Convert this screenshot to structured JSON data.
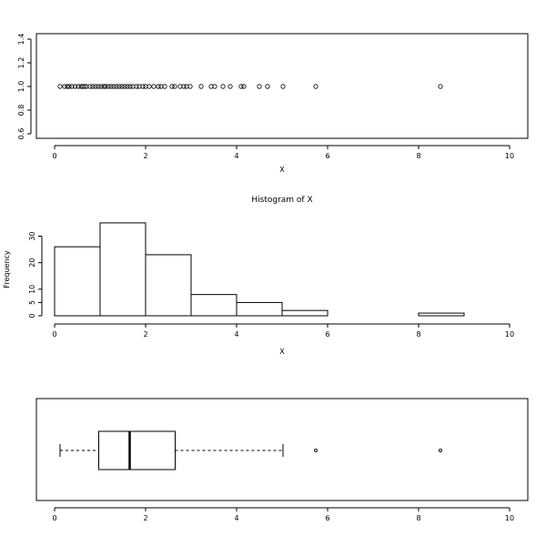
{
  "chart_data": [
    {
      "type": "scatter",
      "xlabel": "X",
      "ylabel": "",
      "xlim": [
        0,
        10
      ],
      "ylim": [
        0.6,
        1.4
      ],
      "x_ticks": [
        0,
        2,
        4,
        6,
        8,
        10
      ],
      "y_ticks": [
        0.6,
        0.8,
        1.0,
        1.2,
        1.4
      ],
      "y_tick_labels": [
        "0.6",
        "0.8",
        "1.0",
        "1.2",
        "1.4"
      ],
      "marker": "open-circle",
      "points": [
        {
          "x": 0.12,
          "y": 1.0
        },
        {
          "x": 0.22,
          "y": 1.0
        },
        {
          "x": 0.28,
          "y": 1.0
        },
        {
          "x": 0.32,
          "y": 1.0
        },
        {
          "x": 0.38,
          "y": 1.0
        },
        {
          "x": 0.45,
          "y": 1.0
        },
        {
          "x": 0.52,
          "y": 1.0
        },
        {
          "x": 0.58,
          "y": 1.0
        },
        {
          "x": 0.62,
          "y": 1.0
        },
        {
          "x": 0.66,
          "y": 1.0
        },
        {
          "x": 0.7,
          "y": 1.0
        },
        {
          "x": 0.78,
          "y": 1.0
        },
        {
          "x": 0.84,
          "y": 1.0
        },
        {
          "x": 0.9,
          "y": 1.0
        },
        {
          "x": 0.96,
          "y": 1.0
        },
        {
          "x": 1.02,
          "y": 1.0
        },
        {
          "x": 1.08,
          "y": 1.0
        },
        {
          "x": 1.12,
          "y": 1.0
        },
        {
          "x": 1.18,
          "y": 1.0
        },
        {
          "x": 1.24,
          "y": 1.0
        },
        {
          "x": 1.3,
          "y": 1.0
        },
        {
          "x": 1.36,
          "y": 1.0
        },
        {
          "x": 1.42,
          "y": 1.0
        },
        {
          "x": 1.48,
          "y": 1.0
        },
        {
          "x": 1.54,
          "y": 1.0
        },
        {
          "x": 1.6,
          "y": 1.0
        },
        {
          "x": 1.66,
          "y": 1.0
        },
        {
          "x": 1.72,
          "y": 1.0
        },
        {
          "x": 1.8,
          "y": 1.0
        },
        {
          "x": 1.86,
          "y": 1.0
        },
        {
          "x": 1.94,
          "y": 1.0
        },
        {
          "x": 2.0,
          "y": 1.0
        },
        {
          "x": 2.08,
          "y": 1.0
        },
        {
          "x": 2.18,
          "y": 1.0
        },
        {
          "x": 2.28,
          "y": 1.0
        },
        {
          "x": 2.34,
          "y": 1.0
        },
        {
          "x": 2.42,
          "y": 1.0
        },
        {
          "x": 2.58,
          "y": 1.0
        },
        {
          "x": 2.64,
          "y": 1.0
        },
        {
          "x": 2.76,
          "y": 1.0
        },
        {
          "x": 2.84,
          "y": 1.0
        },
        {
          "x": 2.9,
          "y": 1.0
        },
        {
          "x": 2.98,
          "y": 1.0
        },
        {
          "x": 3.22,
          "y": 1.0
        },
        {
          "x": 3.44,
          "y": 1.0
        },
        {
          "x": 3.52,
          "y": 1.0
        },
        {
          "x": 3.7,
          "y": 1.0
        },
        {
          "x": 3.86,
          "y": 1.0
        },
        {
          "x": 4.1,
          "y": 1.0
        },
        {
          "x": 4.16,
          "y": 1.0
        },
        {
          "x": 4.5,
          "y": 1.0
        },
        {
          "x": 4.68,
          "y": 1.0
        },
        {
          "x": 5.02,
          "y": 1.0
        },
        {
          "x": 5.74,
          "y": 1.0
        },
        {
          "x": 8.48,
          "y": 1.0
        }
      ]
    },
    {
      "type": "bar",
      "title": "Histogram of X",
      "xlabel": "X",
      "ylabel": "Frequency",
      "xlim": [
        0,
        10
      ],
      "ylim": [
        0,
        36
      ],
      "x_ticks": [
        0,
        2,
        4,
        6,
        8,
        10
      ],
      "y_ticks": [
        0,
        5,
        10,
        20,
        30
      ],
      "bins": [
        {
          "from": 0,
          "to": 1,
          "count": 26
        },
        {
          "from": 1,
          "to": 2,
          "count": 35
        },
        {
          "from": 2,
          "to": 3,
          "count": 23
        },
        {
          "from": 3,
          "to": 4,
          "count": 8
        },
        {
          "from": 4,
          "to": 5,
          "count": 5
        },
        {
          "from": 5,
          "to": 6,
          "count": 2
        },
        {
          "from": 6,
          "to": 7,
          "count": 0
        },
        {
          "from": 7,
          "to": 8,
          "count": 0
        },
        {
          "from": 8,
          "to": 9,
          "count": 1
        }
      ]
    },
    {
      "type": "box",
      "orientation": "horizontal",
      "xlim": [
        0,
        10
      ],
      "x_ticks": [
        0,
        2,
        4,
        6,
        8,
        10
      ],
      "whisker_low": 0.12,
      "q1": 0.97,
      "median": 1.65,
      "q3": 2.65,
      "whisker_high": 5.02,
      "outliers": [
        5.74,
        8.48
      ]
    }
  ]
}
